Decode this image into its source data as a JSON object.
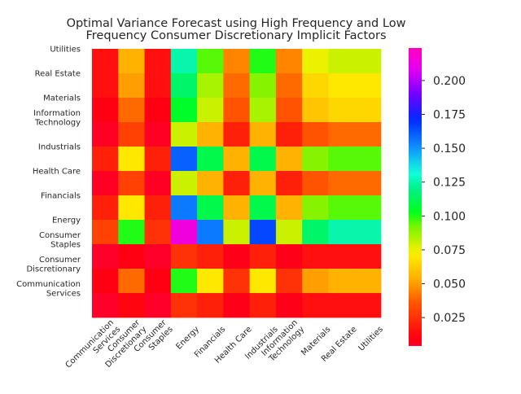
{
  "chart_data": {
    "type": "heatmap",
    "title": "Optimal Variance Forecast using High Frequency and Low\nFrequency Consumer Discretionary Implicit Factors",
    "xlabel": "",
    "ylabel": "",
    "x_categories": [
      "Communication\nServices",
      "Consumer\nDiscretionary",
      "Consumer\nStaples",
      "Energy",
      "Financials",
      "Health Care",
      "Industrials",
      "Information\nTechnology",
      "Materials",
      "Real Estate",
      "Utilities"
    ],
    "y_categories": [
      "Utilities",
      "Real Estate",
      "Materials",
      "Information\nTechnology",
      "Industrials",
      "Health Care",
      "Financials",
      "Energy",
      "Consumer\nStaples",
      "Consumer\nDiscretionary",
      "Communication\nServices"
    ],
    "values": [
      [
        0.015,
        0.055,
        0.015,
        0.125,
        0.095,
        0.045,
        0.1,
        0.045,
        0.075,
        0.08,
        0.08
      ],
      [
        0.015,
        0.05,
        0.015,
        0.115,
        0.085,
        0.04,
        0.09,
        0.04,
        0.065,
        0.07,
        0.07
      ],
      [
        0.01,
        0.04,
        0.01,
        0.105,
        0.08,
        0.035,
        0.085,
        0.035,
        0.06,
        0.065,
        0.065
      ],
      [
        0.005,
        0.03,
        0.005,
        0.08,
        0.055,
        0.02,
        0.055,
        0.02,
        0.035,
        0.04,
        0.04
      ],
      [
        0.02,
        0.07,
        0.02,
        0.16,
        0.11,
        0.055,
        0.11,
        0.055,
        0.09,
        0.095,
        0.095
      ],
      [
        0.005,
        0.03,
        0.005,
        0.08,
        0.055,
        0.02,
        0.055,
        0.02,
        0.035,
        0.04,
        0.04
      ],
      [
        0.02,
        0.07,
        0.02,
        0.155,
        0.11,
        0.055,
        0.11,
        0.055,
        0.09,
        0.095,
        0.095
      ],
      [
        0.03,
        0.1,
        0.025,
        0.215,
        0.155,
        0.08,
        0.165,
        0.08,
        0.115,
        0.125,
        0.125
      ],
      [
        0.002,
        0.01,
        0.003,
        0.025,
        0.02,
        0.008,
        0.02,
        0.008,
        0.015,
        0.015,
        0.015
      ],
      [
        0.01,
        0.04,
        0.01,
        0.1,
        0.07,
        0.025,
        0.07,
        0.025,
        0.05,
        0.055,
        0.055
      ],
      [
        0.002,
        0.012,
        0.003,
        0.025,
        0.02,
        0.008,
        0.02,
        0.008,
        0.015,
        0.015,
        0.015
      ]
    ],
    "colorbar": {
      "ticks": [
        0.025,
        0.05,
        0.075,
        0.1,
        0.125,
        0.15,
        0.175,
        0.2
      ],
      "tick_labels": [
        "0.025",
        "0.050",
        "0.075",
        "0.100",
        "0.125",
        "0.150",
        "0.175",
        "0.200"
      ],
      "vmin": 0.004,
      "vmax": 0.224,
      "colormap": "gist_rainbow"
    },
    "grid": false
  }
}
